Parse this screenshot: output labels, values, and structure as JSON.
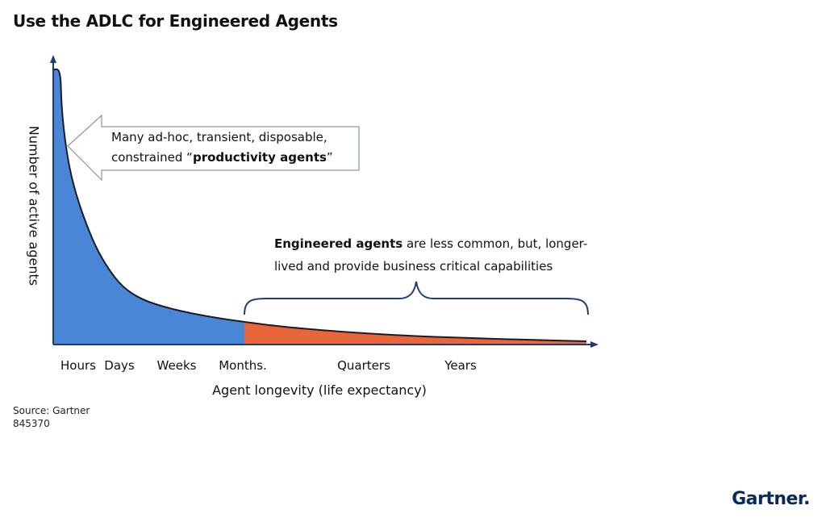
{
  "title": "Use the ADLC for Engineered Agents",
  "chart_data": {
    "type": "area",
    "title": "",
    "xlabel": "Agent longevity (life expectancy)",
    "ylabel": "Number of active agents",
    "x_categories": [
      "Hours",
      "Days",
      "Weeks",
      "Months.",
      "Quarters",
      "Years"
    ],
    "series": [
      {
        "color": "#4a86d6"
      },
      {
        "color": "#e8663a"
      }
    ],
    "curve": "long-tail decay, high at Hours and approaching zero after Years",
    "annotations": {
      "callout": {
        "line1": "Many ad-hoc, transient, disposable,",
        "line2_prefix": "constrained “",
        "line2_bold": "productivity agents",
        "line2_suffix": "”"
      },
      "brace": {
        "bold": "Engineered agents",
        "line1_rest": " are less common, but, longer-",
        "line2": "lived and provide business critical capabilities"
      }
    },
    "grid": false,
    "legend": "none"
  },
  "source": {
    "line1": "Source: Gartner",
    "line2": "845370"
  },
  "logo": "Gartner."
}
